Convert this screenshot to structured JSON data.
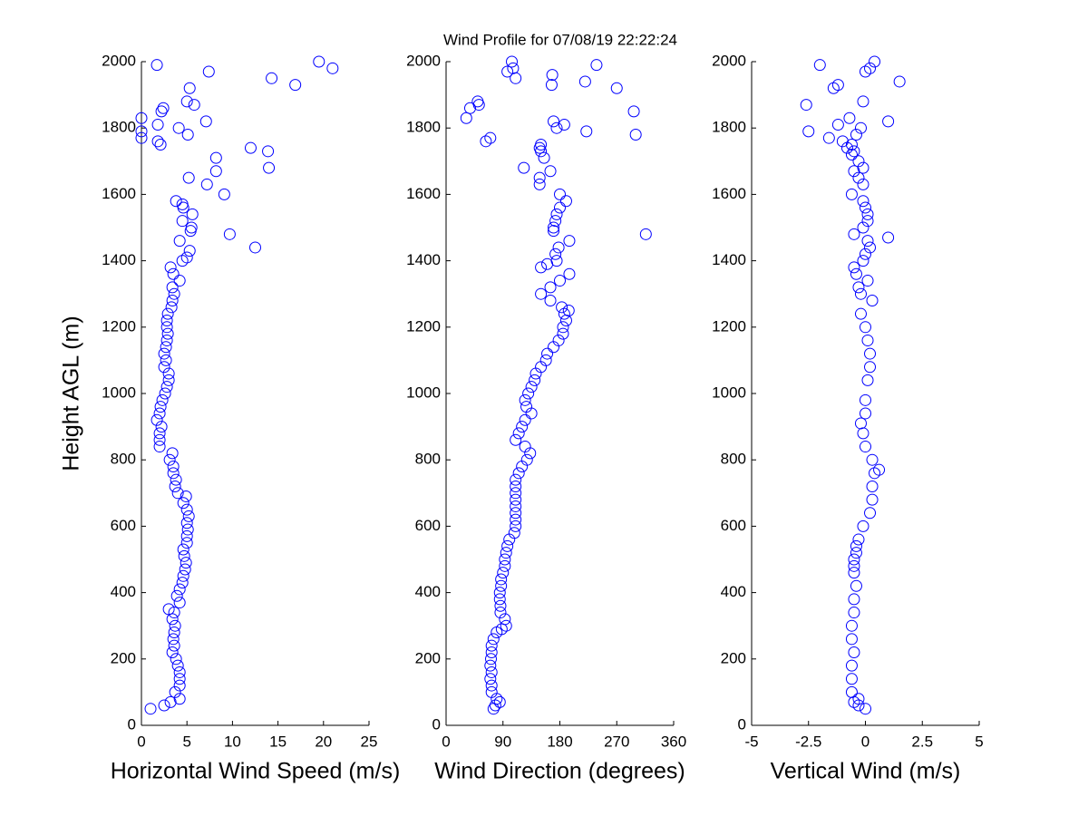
{
  "chart_data": [
    {
      "type": "scatter",
      "title": "Wind Profile for  07/08/19 22:22:24",
      "xlabel": "Horizontal Wind Speed (m/s)",
      "ylabel": "Height AGL (m)",
      "color": "#0000ff",
      "xlim": [
        0,
        25
      ],
      "xticks": [
        0,
        5,
        10,
        15,
        20,
        25
      ],
      "ylim": [
        0,
        2000
      ],
      "yticks": [
        0,
        200,
        400,
        600,
        800,
        1000,
        1200,
        1400,
        1600,
        1800,
        2000
      ],
      "x": [
        1,
        2.5,
        3.2,
        4.2,
        3.7,
        4.2,
        4.2,
        4.2,
        4,
        3.8,
        3.4,
        3.6,
        3.5,
        3.6,
        3.7,
        3.4,
        3.6,
        3,
        4.2,
        3.9,
        4.2,
        4.5,
        4.6,
        4.8,
        4.9,
        4.7,
        4.6,
        5,
        5,
        5.1,
        5,
        5.2,
        5,
        4.6,
        4.9,
        4,
        3.7,
        3.8,
        3.5,
        3.5,
        3.1,
        3.4,
        2,
        2,
        2,
        2.2,
        1.7,
        2,
        2.1,
        2.3,
        2.6,
        2.8,
        3,
        3,
        2.5,
        2.7,
        2.5,
        2.7,
        2.8,
        2.9,
        2.8,
        2.8,
        2.9,
        3.3,
        3.4,
        3.6,
        3.4,
        4.2,
        3.5,
        3.2,
        4.5,
        5,
        5.3,
        12.5,
        4.2,
        9.7,
        5.4,
        5.5,
        4.5,
        5.6,
        4.6,
        4.5,
        3.8,
        9.1,
        7.2,
        5.2,
        8.2,
        14,
        8.2,
        13.9,
        12,
        2.1,
        0,
        1.8,
        5.1,
        0,
        4.1,
        1.8,
        7.1,
        0,
        2.2,
        2.4,
        5.8,
        5,
        5.3,
        16.9,
        14.3,
        7.4,
        21,
        1.7,
        19.5
      ],
      "y": [
        50,
        60,
        70,
        80,
        100,
        120,
        140,
        160,
        180,
        200,
        220,
        240,
        260,
        280,
        300,
        320,
        340,
        350,
        370,
        390,
        410,
        430,
        450,
        470,
        490,
        510,
        530,
        550,
        570,
        590,
        610,
        630,
        650,
        670,
        690,
        700,
        720,
        740,
        760,
        780,
        800,
        820,
        840,
        860,
        880,
        900,
        920,
        940,
        960,
        980,
        1000,
        1020,
        1040,
        1060,
        1080,
        1100,
        1120,
        1140,
        1160,
        1180,
        1200,
        1220,
        1240,
        1260,
        1280,
        1300,
        1320,
        1340,
        1360,
        1380,
        1400,
        1410,
        1430,
        1440,
        1460,
        1480,
        1490,
        1500,
        1520,
        1540,
        1560,
        1570,
        1580,
        1600,
        1630,
        1650,
        1670,
        1680,
        1710,
        1730,
        1740,
        1750,
        1770,
        1760,
        1780,
        1790,
        1800,
        1810,
        1820,
        1830,
        1850,
        1860,
        1870,
        1880,
        1920,
        1930,
        1950,
        1970,
        1980,
        1990,
        2000
      ]
    },
    {
      "type": "scatter",
      "xlabel": "Wind Direction (degrees)",
      "color": "#0000ff",
      "xlim": [
        0,
        360
      ],
      "xticks": [
        0,
        90,
        180,
        270,
        360
      ],
      "ylim": [
        0,
        2000
      ],
      "yticks": [
        0,
        200,
        400,
        600,
        800,
        1000,
        1200,
        1400,
        1600,
        1800,
        2000
      ],
      "x": [
        75,
        78,
        85,
        80,
        72,
        72,
        70,
        72,
        70,
        71,
        72,
        72,
        75,
        80,
        88,
        95,
        93,
        86,
        86,
        85,
        85,
        87,
        87,
        90,
        93,
        93,
        95,
        97,
        100,
        108,
        110,
        110,
        110,
        110,
        110,
        110,
        110,
        110,
        115,
        120,
        128,
        133,
        125,
        110,
        115,
        120,
        125,
        135,
        127,
        125,
        130,
        135,
        140,
        142,
        150,
        158,
        160,
        170,
        178,
        185,
        185,
        190,
        187,
        194,
        183,
        165,
        150,
        165,
        180,
        195,
        150,
        160,
        175,
        173,
        178,
        195,
        316,
        170,
        170,
        173,
        175,
        180,
        190,
        180,
        148,
        148,
        165,
        123,
        155,
        150,
        148,
        150,
        63,
        70,
        300,
        222,
        175,
        187,
        170,
        32,
        297,
        38,
        52,
        50,
        270,
        167,
        220,
        110,
        168,
        97,
        106,
        238,
        104
      ],
      "y": [
        50,
        60,
        70,
        80,
        100,
        120,
        140,
        160,
        180,
        200,
        220,
        240,
        260,
        280,
        290,
        300,
        320,
        340,
        360,
        380,
        400,
        420,
        440,
        460,
        480,
        500,
        520,
        540,
        560,
        580,
        600,
        620,
        640,
        660,
        680,
        700,
        720,
        740,
        760,
        780,
        800,
        820,
        840,
        860,
        880,
        900,
        920,
        940,
        960,
        980,
        1000,
        1020,
        1040,
        1060,
        1080,
        1100,
        1120,
        1140,
        1160,
        1180,
        1200,
        1220,
        1240,
        1250,
        1260,
        1280,
        1300,
        1320,
        1340,
        1360,
        1380,
        1390,
        1400,
        1420,
        1440,
        1460,
        1480,
        1490,
        1500,
        1520,
        1540,
        1560,
        1580,
        1600,
        1630,
        1650,
        1670,
        1680,
        1710,
        1730,
        1740,
        1750,
        1760,
        1770,
        1780,
        1790,
        1800,
        1810,
        1820,
        1830,
        1850,
        1860,
        1870,
        1880,
        1920,
        1930,
        1940,
        1950,
        1960,
        1970,
        1980,
        1990,
        2000
      ]
    },
    {
      "type": "scatter",
      "xlabel": "Vertical Wind (m/s)",
      "color": "#0000ff",
      "xlim": [
        -5,
        5
      ],
      "xticks": [
        -5,
        -2.5,
        0,
        2.5,
        5
      ],
      "ylim": [
        0,
        2000
      ],
      "yticks": [
        0,
        200,
        400,
        600,
        800,
        1000,
        1200,
        1400,
        1600,
        1800,
        2000
      ],
      "x": [
        0,
        -0.3,
        -0.5,
        -0.3,
        -0.6,
        -0.6,
        -0.6,
        -0.5,
        -0.6,
        -0.6,
        -0.5,
        -0.5,
        -0.4,
        -0.5,
        -0.5,
        -0.4,
        -0.5,
        -0.4,
        -0.3,
        -0.1,
        0.2,
        0.3,
        0.3,
        0.4,
        0.6,
        0.3,
        0,
        -0.1,
        -0.2,
        0,
        0,
        0.1,
        0.2,
        0.2,
        0.1,
        0,
        -0.2,
        0.3,
        -0.2,
        -0.3,
        0.1,
        -0.4,
        -0.5,
        -0.1,
        0,
        0.2,
        0.1,
        1,
        -0.5,
        -0.1,
        0.1,
        0.1,
        0,
        -0.1,
        -0.6,
        -0.1,
        -0.3,
        -0.5,
        -0.1,
        -0.3,
        -0.6,
        -0.5,
        -0.8,
        -0.6,
        -1,
        -1.6,
        -0.4,
        -2.5,
        -0.2,
        -1.2,
        1,
        -0.7,
        -2.6,
        -0.1,
        -1.4,
        -1.2,
        1.5,
        0,
        0.2,
        -2,
        0.4
      ],
      "y": [
        50,
        60,
        70,
        80,
        100,
        140,
        180,
        220,
        260,
        300,
        340,
        380,
        420,
        460,
        500,
        520,
        480,
        540,
        560,
        600,
        640,
        680,
        720,
        760,
        770,
        800,
        840,
        880,
        910,
        940,
        980,
        1040,
        1080,
        1120,
        1160,
        1200,
        1240,
        1280,
        1300,
        1320,
        1340,
        1360,
        1380,
        1400,
        1420,
        1440,
        1460,
        1470,
        1480,
        1500,
        1520,
        1540,
        1560,
        1580,
        1600,
        1630,
        1650,
        1670,
        1680,
        1700,
        1720,
        1730,
        1740,
        1750,
        1760,
        1770,
        1780,
        1790,
        1800,
        1810,
        1820,
        1830,
        1870,
        1880,
        1920,
        1930,
        1940,
        1970,
        1980,
        1990,
        2000
      ]
    }
  ]
}
